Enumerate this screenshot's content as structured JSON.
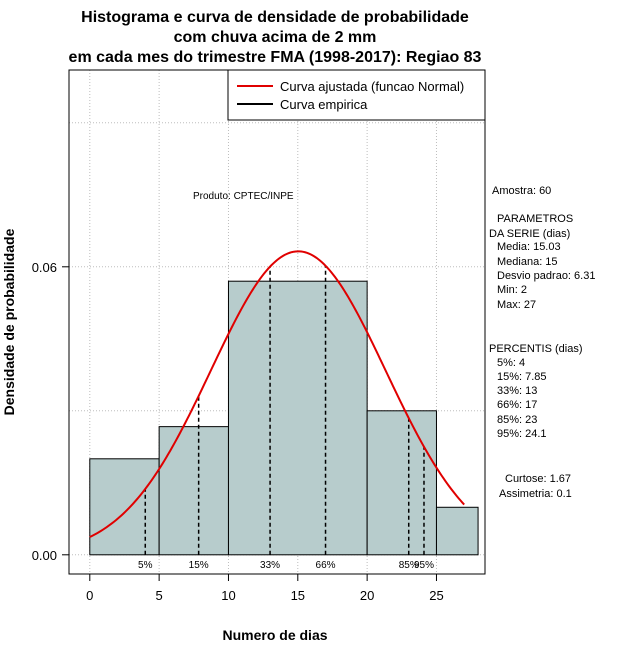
{
  "chart_data": {
    "type": "histogram",
    "title_lines": [
      "Histograma e curva de densidade de probabilidade",
      "com chuva acima de 2 mm",
      "em cada mes do trimestre FMA (1998-2017): Regiao 83"
    ],
    "xlabel": "Numero de dias",
    "ylabel": "Densidade de probabilidade",
    "xlim": [
      -1.5,
      28.5
    ],
    "ylim": [
      -0.004,
      0.101
    ],
    "x_ticks": [
      0,
      5,
      10,
      15,
      20,
      25
    ],
    "y_ticks": [
      0.0,
      0.06
    ],
    "y_tick_labels": [
      "0.00",
      "0.06"
    ],
    "grid": true,
    "legend_position": "top-right",
    "legend": [
      {
        "label": "Curva ajustada (funcao Normal)",
        "color": "#e00000"
      },
      {
        "label": "Curva empirica",
        "color": "#000000"
      }
    ],
    "bars": [
      {
        "x0": 0,
        "x1": 5,
        "density": 0.02
      },
      {
        "x0": 5,
        "x1": 10,
        "density": 0.0267
      },
      {
        "x0": 10,
        "x1": 20,
        "density": 0.057
      },
      {
        "x0": 20,
        "x1": 25,
        "density": 0.03
      },
      {
        "x0": 25,
        "x1": 28,
        "density": 0.0099
      }
    ],
    "bar_color": "#b7cccc",
    "normal_fit": {
      "mean": 15.03,
      "sd": 6.31,
      "x_range": [
        0,
        27
      ]
    },
    "percentile_lines": [
      {
        "label": "5%",
        "x": 4
      },
      {
        "label": "15%",
        "x": 7.85
      },
      {
        "label": "33%",
        "x": 13
      },
      {
        "label": "66%",
        "x": 17
      },
      {
        "label": "85%",
        "x": 23
      },
      {
        "label": "95%",
        "x": 24.1
      }
    ],
    "annotation": "Produto: CPTEC/INPE"
  },
  "stats": {
    "amostra": "Amostra: 60",
    "param_header_1": "PARAMETROS",
    "param_header_2": "DA SERIE (dias)",
    "params": [
      "Media: 15.03",
      "Mediana: 15",
      "Desvio padrao: 6.31",
      "Min: 2",
      "Max: 27"
    ],
    "percentis_header": "PERCENTIS (dias)",
    "percentis": [
      "5%: 4",
      "15%: 7.85",
      "33%: 13",
      "66%: 17",
      "85%: 23",
      "95%: 24.1"
    ],
    "curtose": "Curtose: 1.67",
    "assimetria": "Assimetria: 0.1"
  }
}
